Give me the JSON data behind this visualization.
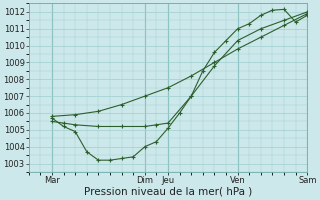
{
  "xlabel": "Pression niveau de la mer( hPa )",
  "xlim": [
    0,
    6.0
  ],
  "ylim": [
    1002.5,
    1012.5
  ],
  "bg_color": "#cce8ea",
  "line_color": "#2d5f2d",
  "grid_color": "#9ecece",
  "vline_color": "#6aabab",
  "xtick_positions": [
    0.5,
    2.25,
    3.0,
    4.5,
    6.0
  ],
  "xtick_labels": [
    "Mar",
    "Dim  Jeu",
    "",
    "Ven",
    "Sam"
  ],
  "line1_x": [
    0.5,
    0.75,
    1.0,
    1.25,
    1.5,
    1.75,
    2.0,
    2.25,
    2.5,
    2.75,
    3.0,
    3.25,
    3.5,
    3.75,
    4.0,
    4.25,
    4.5,
    4.75,
    5.0,
    5.25,
    5.5,
    5.75,
    6.0
  ],
  "line1_y": [
    1005.7,
    1005.2,
    1004.9,
    1003.7,
    1003.2,
    1003.2,
    1003.3,
    1003.4,
    1004.0,
    1004.3,
    1005.1,
    1006.0,
    1007.0,
    1008.5,
    1009.6,
    1010.3,
    1011.0,
    1011.3,
    1011.8,
    1012.1,
    1012.15,
    1011.4,
    1011.8
  ],
  "line2_x": [
    0.5,
    0.75,
    1.0,
    1.5,
    2.0,
    2.5,
    2.75,
    3.0,
    3.5,
    4.0,
    4.5,
    5.0,
    5.5,
    6.0
  ],
  "line2_y": [
    1005.5,
    1005.4,
    1005.3,
    1005.2,
    1005.2,
    1005.2,
    1005.3,
    1005.4,
    1007.0,
    1008.8,
    1010.3,
    1011.0,
    1011.5,
    1012.0
  ],
  "line3_x": [
    0.5,
    1.0,
    1.5,
    2.0,
    2.5,
    3.0,
    3.5,
    4.0,
    4.5,
    5.0,
    5.5,
    6.0
  ],
  "line3_y": [
    1005.8,
    1005.9,
    1006.1,
    1006.5,
    1007.0,
    1007.5,
    1008.2,
    1009.0,
    1009.8,
    1010.5,
    1011.2,
    1011.9
  ]
}
